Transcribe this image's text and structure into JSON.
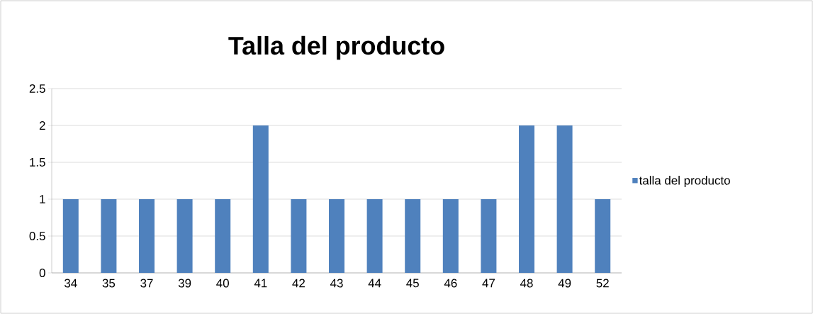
{
  "chart_data": {
    "type": "bar",
    "title": "Talla del producto",
    "categories": [
      "34",
      "35",
      "37",
      "39",
      "40",
      "41",
      "42",
      "43",
      "44",
      "45",
      "46",
      "47",
      "48",
      "49",
      "52"
    ],
    "series": [
      {
        "name": "talla del producto",
        "color": "#4f81bd",
        "values": [
          1,
          1,
          1,
          1,
          1,
          2,
          1,
          1,
          1,
          1,
          1,
          1,
          2,
          2,
          1
        ]
      }
    ],
    "ylim": [
      0,
      2.5
    ],
    "yticks": [
      0,
      0.5,
      1,
      1.5,
      2,
      2.5
    ],
    "grid": "y",
    "legend": "right"
  }
}
